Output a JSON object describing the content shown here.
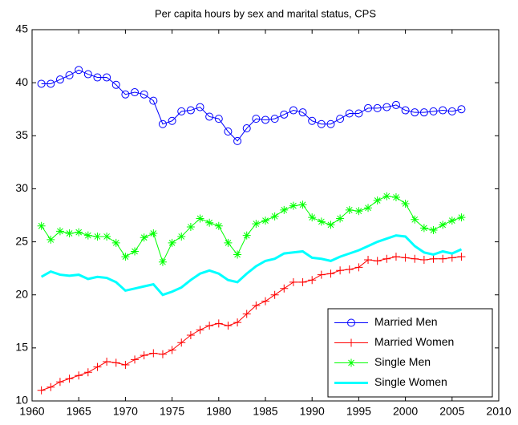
{
  "chart_data": {
    "type": "line",
    "title": "Per capita hours by sex and marital status, CPS",
    "x": [
      1961,
      1962,
      1963,
      1964,
      1965,
      1966,
      1967,
      1968,
      1969,
      1970,
      1971,
      1972,
      1973,
      1974,
      1975,
      1976,
      1977,
      1978,
      1979,
      1980,
      1981,
      1982,
      1983,
      1984,
      1985,
      1986,
      1987,
      1988,
      1989,
      1990,
      1991,
      1992,
      1993,
      1994,
      1995,
      1996,
      1997,
      1998,
      1999,
      2000,
      2001,
      2002,
      2003,
      2004,
      2005,
      2006
    ],
    "series": [
      {
        "name": "Married Men",
        "color": "#0000ff",
        "marker": "o",
        "values": [
          39.9,
          39.9,
          40.3,
          40.7,
          41.2,
          40.8,
          40.5,
          40.5,
          39.8,
          38.9,
          39.1,
          38.9,
          38.3,
          36.1,
          36.4,
          37.3,
          37.4,
          37.7,
          36.8,
          36.6,
          35.4,
          34.5,
          35.7,
          36.6,
          36.5,
          36.6,
          37.0,
          37.4,
          37.2,
          36.4,
          36.1,
          36.1,
          36.6,
          37.1,
          37.1,
          37.6,
          37.6,
          37.7,
          37.9,
          37.4,
          37.2,
          37.2,
          37.3,
          37.4,
          37.3,
          37.5
        ]
      },
      {
        "name": "Married Women",
        "color": "#ff0000",
        "marker": "+",
        "values": [
          11.0,
          11.3,
          11.8,
          12.1,
          12.4,
          12.7,
          13.2,
          13.7,
          13.6,
          13.4,
          13.9,
          14.3,
          14.5,
          14.4,
          14.8,
          15.5,
          16.2,
          16.7,
          17.1,
          17.3,
          17.1,
          17.4,
          18.2,
          19.0,
          19.4,
          20.0,
          20.6,
          21.2,
          21.2,
          21.4,
          21.9,
          22.0,
          22.3,
          22.4,
          22.6,
          23.3,
          23.2,
          23.4,
          23.6,
          23.5,
          23.4,
          23.3,
          23.4,
          23.4,
          23.5,
          23.6
        ]
      },
      {
        "name": "Single Men",
        "color": "#00ff00",
        "marker": "*",
        "values": [
          26.5,
          25.2,
          26.0,
          25.8,
          25.9,
          25.6,
          25.5,
          25.5,
          24.9,
          23.6,
          24.1,
          25.4,
          25.8,
          23.1,
          24.9,
          25.5,
          26.4,
          27.2,
          26.8,
          26.5,
          24.9,
          23.8,
          25.6,
          26.7,
          27.0,
          27.4,
          28.0,
          28.4,
          28.5,
          27.3,
          26.9,
          26.6,
          27.2,
          28.0,
          27.9,
          28.2,
          28.9,
          29.3,
          29.2,
          28.6,
          27.1,
          26.3,
          26.1,
          26.6,
          27.0,
          27.3
        ]
      },
      {
        "name": "Single Women",
        "color": "#00ffff",
        "marker": "none",
        "values": [
          21.7,
          22.2,
          21.9,
          21.8,
          21.9,
          21.5,
          21.7,
          21.6,
          21.2,
          20.4,
          20.6,
          20.8,
          21.0,
          20.0,
          20.3,
          20.7,
          21.4,
          22.0,
          22.3,
          22.0,
          21.4,
          21.2,
          22.0,
          22.7,
          23.2,
          23.4,
          23.9,
          24.0,
          24.1,
          23.5,
          23.4,
          23.2,
          23.6,
          23.9,
          24.2,
          24.6,
          25.0,
          25.3,
          25.6,
          25.5,
          24.6,
          24.0,
          23.8,
          24.1,
          23.9,
          24.3
        ]
      }
    ],
    "xlim": [
      1960,
      2010
    ],
    "xticks": [
      1960,
      1965,
      1970,
      1975,
      1980,
      1985,
      1990,
      1995,
      2000,
      2005,
      2010
    ],
    "ylim": [
      10,
      45
    ],
    "yticks": [
      10,
      15,
      20,
      25,
      30,
      35,
      40,
      45
    ],
    "grid": false,
    "legend": "lower right"
  }
}
